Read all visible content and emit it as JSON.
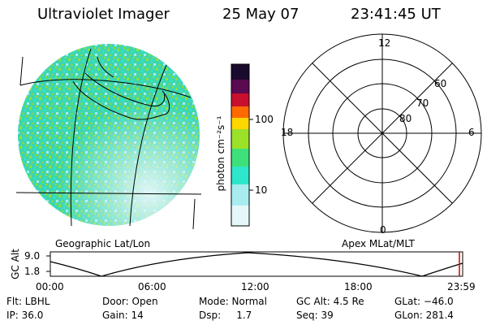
{
  "header": {
    "title": "Ultraviolet Imager",
    "date": "25 May 07",
    "time": "23:41:45 UT"
  },
  "colorbar": {
    "unit_label": "photon cm⁻²s⁻¹",
    "ticks": [
      "100",
      "10"
    ],
    "colors_top_to_bottom": [
      "#1a0a2e",
      "#5a0a50",
      "#8b0030",
      "#c8102e",
      "#ff6a00",
      "#ffd700",
      "#9be12a",
      "#3ee07a",
      "#2ee6cc",
      "#a8ecf0",
      "#e6f7fa"
    ]
  },
  "polar": {
    "mlt_labels": {
      "top": "12",
      "left": "18",
      "right": "6",
      "bottom": "0"
    },
    "lat_labels": [
      "60",
      "70",
      "80"
    ]
  },
  "panels": {
    "left_caption": "Geographic Lat/Lon",
    "right_caption": "Apex MLat/MLT"
  },
  "orbit": {
    "ylabel": "GC Alt",
    "y_ticks": [
      "9.0",
      "1.8"
    ],
    "x_ticks": [
      "00:00",
      "06:00",
      "12:00",
      "18:00",
      "23:59"
    ]
  },
  "footer": {
    "row1": [
      {
        "label": "Flt: LBHL"
      },
      {
        "label": "Door: Open"
      },
      {
        "label": "Mode: Normal"
      },
      {
        "label": "GC Alt: 4.5 Re"
      },
      {
        "label": "GLat: −46.0"
      }
    ],
    "row2": [
      {
        "label": "IP: 36.0"
      },
      {
        "label": "Gain: 14"
      },
      {
        "label": "Dsp:     1.7"
      },
      {
        "label": "Seq: 39"
      },
      {
        "label": "GLon: 281.4"
      }
    ]
  }
}
